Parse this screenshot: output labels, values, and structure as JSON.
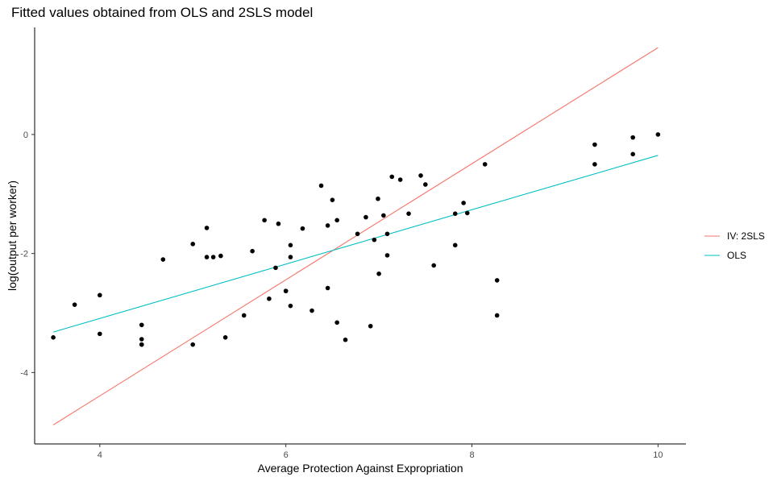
{
  "chart_data": {
    "type": "scatter",
    "title": "Fitted values obtained from OLS and 2SLS model",
    "xlabel": "Average Protection Against Expropriation",
    "ylabel": "log(output per worker)",
    "xlim": [
      3.3,
      10.3
    ],
    "ylim": [
      -5.2,
      1.8
    ],
    "x_ticks": [
      4,
      6,
      8,
      10
    ],
    "y_ticks": [
      0,
      -2,
      -4
    ],
    "grid": false,
    "legend_position": "right",
    "points": {
      "x": [
        3.5,
        3.73,
        4.0,
        4.0,
        4.45,
        4.45,
        4.45,
        4.45,
        4.68,
        5.0,
        5.0,
        5.15,
        5.15,
        5.22,
        5.3,
        5.35,
        5.55,
        5.64,
        5.77,
        5.82,
        5.89,
        5.92,
        6.0,
        6.0,
        6.05,
        6.05,
        6.05,
        6.18,
        6.28,
        6.38,
        6.45,
        6.45,
        6.5,
        6.55,
        6.55,
        6.64,
        6.77,
        6.86,
        6.91,
        6.95,
        6.99,
        7.0,
        7.05,
        7.09,
        7.09,
        7.14,
        7.23,
        7.32,
        7.45,
        7.5,
        7.59,
        7.82,
        7.82,
        7.91,
        7.95,
        8.14,
        8.27,
        8.27,
        9.32,
        9.32,
        9.73,
        9.73,
        10.0
      ],
      "y": [
        -3.41,
        -2.86,
        -2.7,
        -3.35,
        -3.2,
        -3.44,
        -3.53,
        -3.53,
        -2.1,
        -1.84,
        -3.53,
        -1.57,
        -2.06,
        -2.06,
        -2.04,
        -3.41,
        -3.04,
        -1.96,
        -1.44,
        -2.76,
        -2.24,
        -1.5,
        -2.63,
        -2.63,
        -1.86,
        -2.06,
        -2.88,
        -1.58,
        -2.96,
        -0.86,
        -2.58,
        -1.53,
        -1.1,
        -1.44,
        -3.16,
        -3.45,
        -1.67,
        -1.39,
        -3.22,
        -1.77,
        -1.08,
        -2.34,
        -1.36,
        -2.03,
        -1.67,
        -0.71,
        -0.76,
        -1.33,
        -0.69,
        -0.84,
        -2.2,
        -1.33,
        -1.86,
        -1.15,
        -1.32,
        -0.5,
        -2.45,
        -3.04,
        -0.17,
        -0.5,
        -0.05,
        -0.33,
        0.0
      ]
    },
    "series": [
      {
        "name": "IV: 2SLS",
        "color": "#F8766D",
        "x": [
          3.5,
          10.0
        ],
        "y": [
          -4.88,
          1.46
        ]
      },
      {
        "name": "OLS",
        "color": "#00BFC4",
        "x": [
          3.5,
          10.0
        ],
        "y": [
          -3.32,
          -0.35
        ]
      }
    ]
  }
}
